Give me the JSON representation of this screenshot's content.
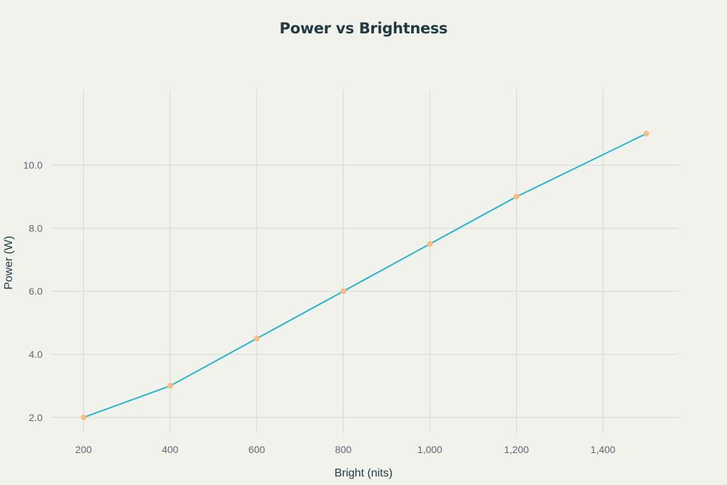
{
  "chart_data": {
    "type": "line",
    "title": "Power vs Brightness",
    "xlabel": "Bright (nits)",
    "ylabel": "Power (W)",
    "x_ticks": [
      200,
      400,
      600,
      800,
      1000,
      1200,
      1400
    ],
    "x_tick_labels": [
      "200",
      "400",
      "600",
      "800",
      "1,000",
      "1,200",
      "1,400"
    ],
    "y_ticks": [
      2,
      4,
      6,
      8,
      10
    ],
    "y_tick_labels": [
      "2.0",
      "4.0",
      "6.0",
      "8.0",
      "10.0"
    ],
    "xlim": [
      125,
      1575
    ],
    "ylim": [
      1.5,
      12.4
    ],
    "grid": true,
    "series": [
      {
        "x": [
          200,
          400,
          600,
          800,
          1000,
          1200,
          1500
        ],
        "y": [
          2.0,
          3.0,
          4.5,
          6.0,
          7.5,
          9.0,
          11.0
        ],
        "line_color": "#26b5d0",
        "marker_color": "#fbbd82"
      }
    ]
  }
}
